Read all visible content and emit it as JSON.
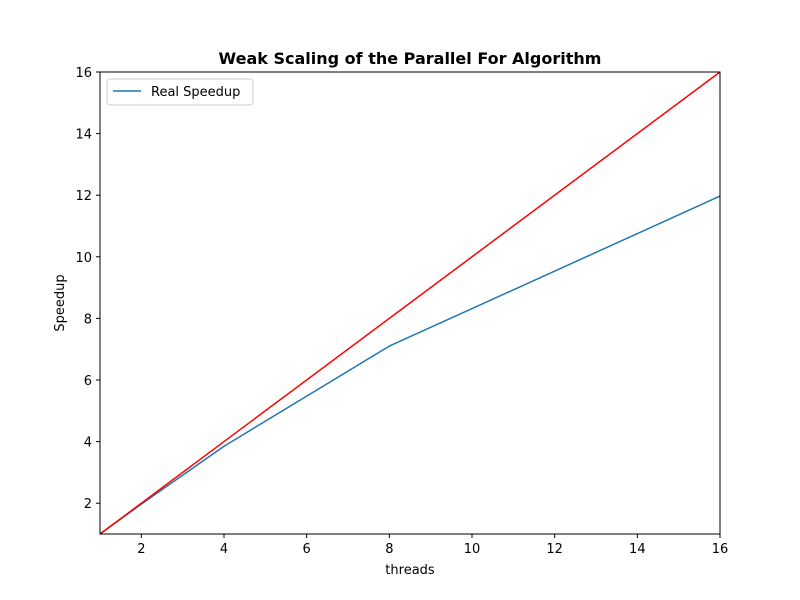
{
  "chart_data": {
    "type": "line",
    "title": "Weak Scaling of the Parallel For Algorithm",
    "xlabel": "threads",
    "ylabel": "Speedup",
    "xlim": [
      1,
      16
    ],
    "ylim": [
      1,
      16
    ],
    "xticks": [
      2,
      4,
      6,
      8,
      10,
      12,
      14,
      16
    ],
    "yticks": [
      2,
      4,
      6,
      8,
      10,
      12,
      14,
      16
    ],
    "grid": false,
    "legend_position": "top-left",
    "series": [
      {
        "name": "Real Speedup",
        "color": "#1f77b4",
        "in_legend": true,
        "x": [
          1,
          2,
          4,
          8,
          16
        ],
        "y": [
          1,
          1.97,
          3.85,
          7.1,
          11.97
        ]
      },
      {
        "name": "",
        "color": "#ff0000",
        "in_legend": false,
        "x": [
          1,
          16
        ],
        "y": [
          1,
          16
        ]
      }
    ]
  }
}
